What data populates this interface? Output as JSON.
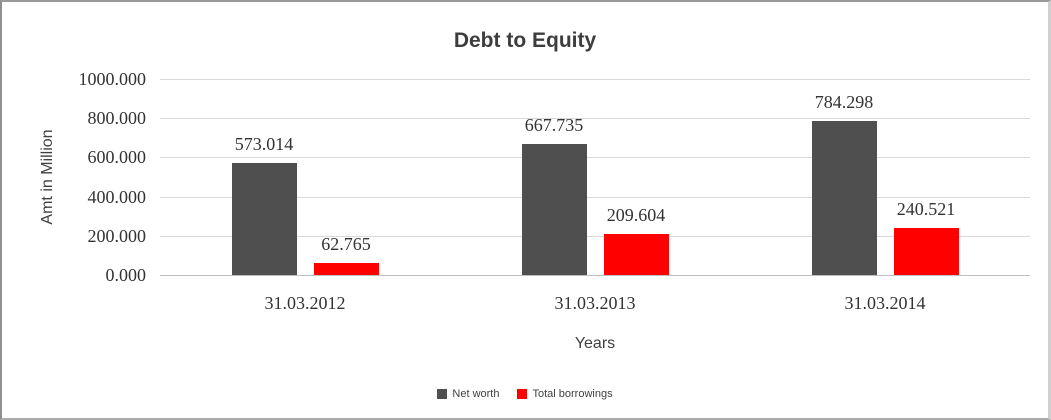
{
  "chart_data": {
    "type": "bar",
    "title": "Debt to Equity",
    "categories": [
      "31.03.2012",
      "31.03.2013",
      "31.03.2014"
    ],
    "series": [
      {
        "name": "Net worth",
        "color": "#4F4F4F",
        "values": [
          573.014,
          667.735,
          784.298
        ],
        "data_labels": [
          "573.014",
          "667.735",
          "784.298"
        ]
      },
      {
        "name": "Total borrowings",
        "color": "#FF0000",
        "values": [
          62.765,
          209.604,
          240.521
        ],
        "data_labels": [
          "62.765",
          "209.604",
          "240.521"
        ]
      }
    ],
    "xlabel": "Years",
    "ylabel": "Amt in Million",
    "ylim": [
      0,
      1000
    ],
    "yticks": [
      0,
      200,
      400,
      600,
      800,
      1000
    ],
    "ytick_labels": [
      "0.000",
      "200.000",
      "400.000",
      "600.000",
      "800.000",
      "1000.000"
    ],
    "grid": true,
    "legend_position": "bottom",
    "colors": {
      "gridline": "#D9D9D9",
      "axis_line": "#BFBFBF",
      "label_text": "#333333",
      "title_text": "#3D3D3D"
    }
  }
}
